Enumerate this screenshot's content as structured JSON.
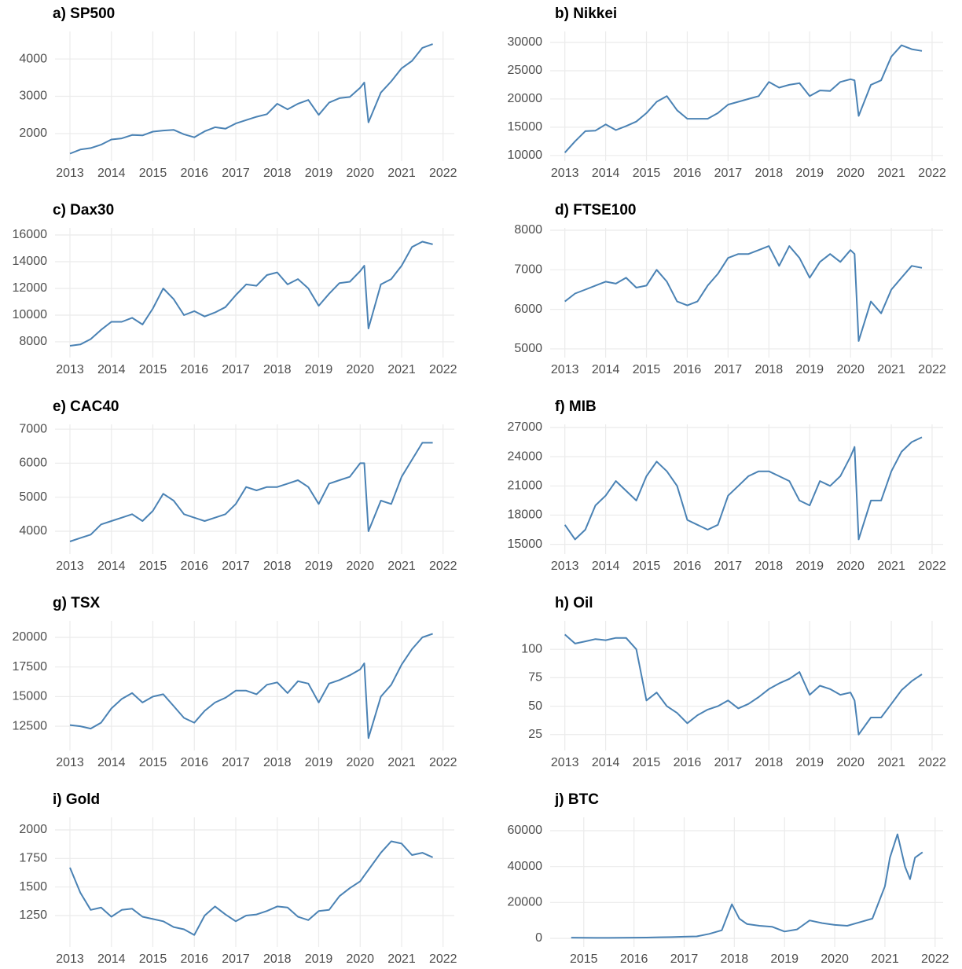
{
  "chart_data": [
    {
      "type": "line",
      "title": "a) SP500",
      "color": "#4a82b4",
      "grid": true,
      "x": [
        2013,
        2013.25,
        2013.5,
        2013.75,
        2014,
        2014.25,
        2014.5,
        2014.75,
        2015,
        2015.25,
        2015.5,
        2015.75,
        2016,
        2016.25,
        2016.5,
        2016.75,
        2017,
        2017.25,
        2017.5,
        2017.75,
        2018,
        2018.25,
        2018.5,
        2018.75,
        2019,
        2019.25,
        2019.5,
        2019.75,
        2020,
        2020.1,
        2020.2,
        2020.5,
        2020.75,
        2021,
        2021.25,
        2021.5,
        2021.75
      ],
      "values": [
        1460,
        1570,
        1610,
        1700,
        1840,
        1870,
        1960,
        1950,
        2050,
        2080,
        2100,
        1980,
        1900,
        2060,
        2170,
        2130,
        2270,
        2360,
        2450,
        2520,
        2800,
        2650,
        2800,
        2900,
        2500,
        2830,
        2950,
        2980,
        3230,
        3370,
        2300,
        3100,
        3400,
        3750,
        3950,
        4300,
        4400
      ],
      "xlim": [
        2012.64,
        2022.27
      ],
      "xticks": [
        2013,
        2014,
        2015,
        2016,
        2017,
        2018,
        2019,
        2020,
        2021,
        2022
      ],
      "ylim": [
        1260,
        4740
      ],
      "yticks": [
        2000,
        3000,
        4000
      ]
    },
    {
      "type": "line",
      "title": "b) Nikkei",
      "color": "#4a82b4",
      "grid": true,
      "x": [
        2013,
        2013.25,
        2013.5,
        2013.75,
        2014,
        2014.25,
        2014.5,
        2014.75,
        2015,
        2015.25,
        2015.5,
        2015.75,
        2016,
        2016.25,
        2016.5,
        2016.75,
        2017,
        2017.25,
        2017.5,
        2017.75,
        2018,
        2018.25,
        2018.5,
        2018.75,
        2019,
        2019.25,
        2019.5,
        2019.75,
        2020,
        2020.1,
        2020.2,
        2020.5,
        2020.75,
        2021,
        2021.25,
        2021.5,
        2021.75
      ],
      "values": [
        10500,
        12500,
        14300,
        14400,
        15500,
        14500,
        15200,
        16000,
        17500,
        19500,
        20500,
        18000,
        16500,
        16500,
        16500,
        17500,
        19000,
        19500,
        20000,
        20500,
        23000,
        22000,
        22500,
        22800,
        20500,
        21500,
        21400,
        23000,
        23500,
        23300,
        17000,
        22500,
        23300,
        27500,
        29500,
        28800,
        28500
      ],
      "xlim": [
        2012.64,
        2022.27
      ],
      "xticks": [
        2013,
        2014,
        2015,
        2016,
        2017,
        2018,
        2019,
        2020,
        2021,
        2022
      ],
      "ylim": [
        9000,
        31950
      ],
      "yticks": [
        10000,
        15000,
        20000,
        25000,
        30000
      ]
    },
    {
      "type": "line",
      "title": "c) Dax30",
      "color": "#4a82b4",
      "grid": true,
      "x": [
        2013,
        2013.25,
        2013.5,
        2013.75,
        2014,
        2014.25,
        2014.5,
        2014.75,
        2015,
        2015.25,
        2015.5,
        2015.75,
        2016,
        2016.25,
        2016.5,
        2016.75,
        2017,
        2017.25,
        2017.5,
        2017.75,
        2018,
        2018.25,
        2018.5,
        2018.75,
        2019,
        2019.25,
        2019.5,
        2019.75,
        2020,
        2020.1,
        2020.2,
        2020.5,
        2020.75,
        2021,
        2021.25,
        2021.5,
        2021.75
      ],
      "values": [
        7700,
        7800,
        8200,
        8900,
        9500,
        9500,
        9800,
        9300,
        10500,
        12000,
        11200,
        10000,
        10300,
        9900,
        10200,
        10600,
        11500,
        12300,
        12200,
        13000,
        13200,
        12300,
        12700,
        12000,
        10700,
        11600,
        12400,
        12500,
        13300,
        13700,
        9000,
        12300,
        12700,
        13700,
        15100,
        15500,
        15300
      ],
      "xlim": [
        2012.64,
        2022.27
      ],
      "xticks": [
        2013,
        2014,
        2015,
        2016,
        2017,
        2018,
        2019,
        2020,
        2021,
        2022
      ],
      "ylim": [
        6820,
        16530
      ],
      "yticks": [
        8000,
        10000,
        12000,
        14000,
        16000
      ]
    },
    {
      "type": "line",
      "title": "d) FTSE100",
      "color": "#4a82b4",
      "grid": true,
      "x": [
        2013,
        2013.25,
        2013.5,
        2013.75,
        2014,
        2014.25,
        2014.5,
        2014.75,
        2015,
        2015.25,
        2015.5,
        2015.75,
        2016,
        2016.25,
        2016.5,
        2016.75,
        2017,
        2017.25,
        2017.5,
        2017.75,
        2018,
        2018.25,
        2018.5,
        2018.75,
        2019,
        2019.25,
        2019.5,
        2019.75,
        2020,
        2020.1,
        2020.2,
        2020.5,
        2020.75,
        2021,
        2021.25,
        2021.5,
        2021.75
      ],
      "values": [
        6200,
        6400,
        6500,
        6600,
        6700,
        6650,
        6800,
        6550,
        6600,
        7000,
        6700,
        6200,
        6100,
        6200,
        6600,
        6900,
        7300,
        7400,
        7400,
        7500,
        7600,
        7100,
        7600,
        7300,
        6800,
        7200,
        7400,
        7200,
        7500,
        7400,
        5200,
        6200,
        5900,
        6500,
        6800,
        7100,
        7050
      ],
      "xlim": [
        2012.64,
        2022.27
      ],
      "xticks": [
        2013,
        2014,
        2015,
        2016,
        2017,
        2018,
        2019,
        2020,
        2021,
        2022
      ],
      "ylim": [
        4780,
        8060
      ],
      "yticks": [
        5000,
        6000,
        7000,
        8000
      ]
    },
    {
      "type": "line",
      "title": "e) CAC40",
      "color": "#4a82b4",
      "grid": true,
      "x": [
        2013,
        2013.25,
        2013.5,
        2013.75,
        2014,
        2014.25,
        2014.5,
        2014.75,
        2015,
        2015.25,
        2015.5,
        2015.75,
        2016,
        2016.25,
        2016.5,
        2016.75,
        2017,
        2017.25,
        2017.5,
        2017.75,
        2018,
        2018.25,
        2018.5,
        2018.75,
        2019,
        2019.25,
        2019.5,
        2019.75,
        2020,
        2020.1,
        2020.2,
        2020.5,
        2020.75,
        2021,
        2021.25,
        2021.5,
        2021.75
      ],
      "values": [
        3700,
        3800,
        3900,
        4200,
        4300,
        4400,
        4500,
        4300,
        4600,
        5100,
        4900,
        4500,
        4400,
        4300,
        4400,
        4500,
        4800,
        5300,
        5200,
        5300,
        5300,
        5400,
        5500,
        5300,
        4800,
        5400,
        5500,
        5600,
        6000,
        6000,
        4000,
        4900,
        4800,
        5600,
        6100,
        6600,
        6600
      ],
      "xlim": [
        2012.64,
        2022.27
      ],
      "xticks": [
        2013,
        2014,
        2015,
        2016,
        2017,
        2018,
        2019,
        2020,
        2021,
        2022
      ],
      "ylim": [
        3330,
        7140
      ],
      "yticks": [
        4000,
        5000,
        6000,
        7000
      ]
    },
    {
      "type": "line",
      "title": "f) MIB",
      "color": "#4a82b4",
      "grid": true,
      "x": [
        2013,
        2013.25,
        2013.5,
        2013.75,
        2014,
        2014.25,
        2014.5,
        2014.75,
        2015,
        2015.25,
        2015.5,
        2015.75,
        2016,
        2016.25,
        2016.5,
        2016.75,
        2017,
        2017.25,
        2017.5,
        2017.75,
        2018,
        2018.25,
        2018.5,
        2018.75,
        2019,
        2019.25,
        2019.5,
        2019.75,
        2020,
        2020.1,
        2020.2,
        2020.5,
        2020.75,
        2021,
        2021.25,
        2021.5,
        2021.75
      ],
      "values": [
        17000,
        15500,
        16500,
        19000,
        20000,
        21500,
        20500,
        19500,
        22000,
        23500,
        22500,
        21000,
        17500,
        17000,
        16500,
        17000,
        20000,
        21000,
        22000,
        22500,
        22500,
        22000,
        21500,
        19500,
        19000,
        21500,
        21000,
        22000,
        24000,
        25000,
        15500,
        19500,
        19500,
        22500,
        24500,
        25500,
        26000
      ],
      "xlim": [
        2012.64,
        2022.27
      ],
      "xticks": [
        2013,
        2014,
        2015,
        2016,
        2017,
        2018,
        2019,
        2020,
        2021,
        2022
      ],
      "ylim": [
        14000,
        27320
      ],
      "yticks": [
        15000,
        18000,
        21000,
        24000,
        27000
      ]
    },
    {
      "type": "line",
      "title": "g) TSX",
      "color": "#4a82b4",
      "grid": true,
      "x": [
        2013,
        2013.25,
        2013.5,
        2013.75,
        2014,
        2014.25,
        2014.5,
        2014.75,
        2015,
        2015.25,
        2015.5,
        2015.75,
        2016,
        2016.25,
        2016.5,
        2016.75,
        2017,
        2017.25,
        2017.5,
        2017.75,
        2018,
        2018.25,
        2018.5,
        2018.75,
        2019,
        2019.25,
        2019.5,
        2019.75,
        2020,
        2020.1,
        2020.2,
        2020.5,
        2020.75,
        2021,
        2021.25,
        2021.5,
        2021.75
      ],
      "values": [
        12600,
        12500,
        12300,
        12800,
        14000,
        14800,
        15300,
        14500,
        15000,
        15200,
        14200,
        13200,
        12800,
        13800,
        14500,
        14900,
        15500,
        15500,
        15200,
        16000,
        16200,
        15300,
        16300,
        16100,
        14500,
        16100,
        16400,
        16800,
        17300,
        17800,
        11500,
        15000,
        16000,
        17700,
        19000,
        20000,
        20300
      ],
      "xlim": [
        2012.64,
        2022.27
      ],
      "xticks": [
        2013,
        2014,
        2015,
        2016,
        2017,
        2018,
        2019,
        2020,
        2021,
        2022
      ],
      "ylim": [
        10450,
        21390
      ],
      "yticks": [
        12500,
        15000,
        17500,
        20000
      ]
    },
    {
      "type": "line",
      "title": "h) Oil",
      "color": "#4a82b4",
      "grid": true,
      "x": [
        2013,
        2013.25,
        2013.5,
        2013.75,
        2014,
        2014.25,
        2014.5,
        2014.75,
        2015,
        2015.25,
        2015.5,
        2015.75,
        2016,
        2016.25,
        2016.5,
        2016.75,
        2017,
        2017.25,
        2017.5,
        2017.75,
        2018,
        2018.25,
        2018.5,
        2018.75,
        2019,
        2019.25,
        2019.5,
        2019.75,
        2020,
        2020.1,
        2020.2,
        2020.5,
        2020.75,
        2021,
        2021.25,
        2021.5,
        2021.75
      ],
      "values": [
        113,
        105,
        107,
        109,
        108,
        110,
        110,
        100,
        55,
        62,
        50,
        44,
        35,
        42,
        47,
        50,
        55,
        48,
        52,
        58,
        65,
        70,
        74,
        80,
        60,
        68,
        65,
        60,
        62,
        55,
        25,
        40,
        40,
        52,
        64,
        72,
        78
      ],
      "xlim": [
        2012.64,
        2022.27
      ],
      "xticks": [
        2013,
        2014,
        2015,
        2016,
        2017,
        2018,
        2019,
        2020,
        2021,
        2022
      ],
      "ylim": [
        11,
        125
      ],
      "yticks": [
        25,
        50,
        75,
        100
      ]
    },
    {
      "type": "line",
      "title": "i) Gold",
      "color": "#4a82b4",
      "grid": true,
      "x": [
        2013,
        2013.25,
        2013.5,
        2013.75,
        2014,
        2014.25,
        2014.5,
        2014.75,
        2015,
        2015.25,
        2015.5,
        2015.75,
        2016,
        2016.25,
        2016.5,
        2016.75,
        2017,
        2017.25,
        2017.5,
        2017.75,
        2018,
        2018.25,
        2018.5,
        2018.75,
        2019,
        2019.25,
        2019.5,
        2019.75,
        2020,
        2020.1,
        2020.2,
        2020.5,
        2020.75,
        2021,
        2021.25,
        2021.5,
        2021.75
      ],
      "values": [
        1670,
        1450,
        1300,
        1320,
        1240,
        1300,
        1310,
        1240,
        1220,
        1200,
        1150,
        1130,
        1080,
        1250,
        1330,
        1260,
        1200,
        1250,
        1260,
        1290,
        1330,
        1320,
        1240,
        1210,
        1290,
        1300,
        1420,
        1490,
        1550,
        1600,
        1650,
        1800,
        1900,
        1880,
        1780,
        1800,
        1760
      ],
      "xlim": [
        2012.64,
        2022.27
      ],
      "xticks": [
        2013,
        2014,
        2015,
        2016,
        2017,
        2018,
        2019,
        2020,
        2021,
        2022
      ],
      "ylim": [
        975,
        2110
      ],
      "yticks": [
        1250,
        1500,
        1750,
        2000
      ]
    },
    {
      "type": "line",
      "title": "j) BTC",
      "color": "#4a82b4",
      "grid": true,
      "x": [
        2014.75,
        2015,
        2015.25,
        2015.5,
        2015.75,
        2016,
        2016.25,
        2016.5,
        2016.75,
        2017,
        2017.25,
        2017.5,
        2017.75,
        2017.95,
        2018.1,
        2018.25,
        2018.5,
        2018.75,
        2019,
        2019.25,
        2019.5,
        2019.75,
        2020,
        2020.25,
        2020.5,
        2020.75,
        2021,
        2021.1,
        2021.25,
        2021.4,
        2021.5,
        2021.6,
        2021.75
      ],
      "values": [
        400,
        300,
        250,
        250,
        300,
        400,
        430,
        600,
        700,
        900,
        1100,
        2500,
        4500,
        19000,
        11000,
        8000,
        7000,
        6500,
        3800,
        5000,
        10000,
        8500,
        7500,
        7000,
        9000,
        11000,
        29000,
        45000,
        58000,
        40000,
        33000,
        45000,
        48000
      ],
      "xlim": [
        2014.33,
        2022.16
      ],
      "xticks": [
        2015,
        2016,
        2017,
        2018,
        2019,
        2020,
        2021,
        2022
      ],
      "ylim": [
        -4820,
        67450
      ],
      "yticks": [
        0,
        20000,
        40000,
        60000
      ]
    }
  ]
}
